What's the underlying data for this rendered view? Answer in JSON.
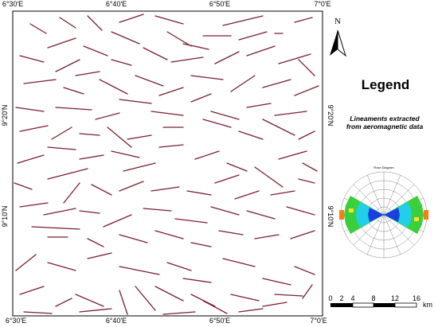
{
  "map": {
    "top_labels": [
      "6°30'E",
      "6°40'E",
      "6°50'E",
      "7°0'E"
    ],
    "bottom_labels": [
      "6°30'E",
      "6°40'E",
      "6°50'E",
      "7°0'E"
    ],
    "left_labels": [
      "9°20'N",
      "9°10'N"
    ],
    "right_labels": [
      "9°20'N",
      "9°10'N"
    ]
  },
  "north": {
    "label": "N"
  },
  "legend": {
    "title": "Legend",
    "description": [
      "Lineaments extracted",
      "from aeromagnetic data"
    ]
  },
  "rose": {
    "title": "Rose Diagram"
  },
  "scale": {
    "labels": [
      "0",
      "2",
      "4",
      "8",
      "12",
      "16"
    ],
    "unit": "km"
  }
}
